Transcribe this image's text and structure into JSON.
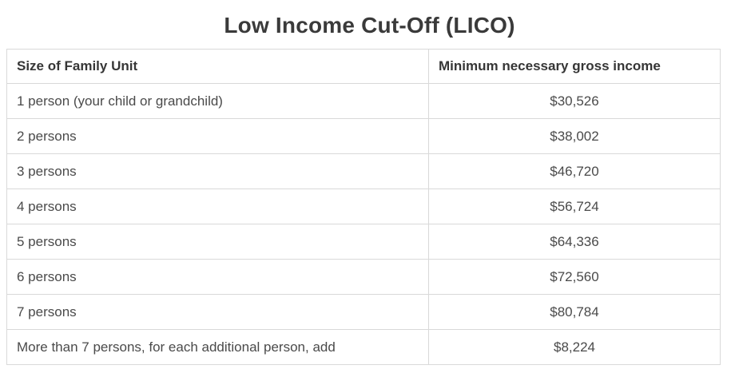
{
  "title": "Low Income Cut-Off (LICO)",
  "table": {
    "headers": {
      "family_size": "Size of Family Unit",
      "income": "Minimum necessary gross income"
    },
    "rows": [
      {
        "label": "1 person (your child or grandchild)",
        "value": "$30,526"
      },
      {
        "label": "2 persons",
        "value": "$38,002"
      },
      {
        "label": "3 persons",
        "value": "$46,720"
      },
      {
        "label": "4 persons",
        "value": "$56,724"
      },
      {
        "label": "5 persons",
        "value": "$64,336"
      },
      {
        "label": "6 persons",
        "value": "$72,560"
      },
      {
        "label": "7 persons",
        "value": "$80,784"
      },
      {
        "label": "More than 7 persons, for each additional person, add",
        "value": "$8,224"
      }
    ]
  },
  "colors": {
    "title_text": "#3a3a3a",
    "body_text": "#4a4a4a",
    "border": "#d9d9d9",
    "background": "#ffffff"
  }
}
